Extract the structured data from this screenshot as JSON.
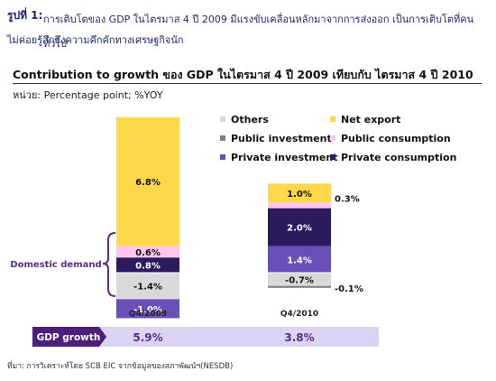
{
  "figure": {
    "label": "รูปที่ 1:",
    "caption_line1": "การเติบโตของ GDP ในไตรมาส 4 ปี 2009 มีแรงขับเคลื่อนหลักมาจากการส่งออก เป็นการเติบโตที่คนทั่วไป",
    "caption_line2": "ไม่ค่อยรู้สึกถึงความคึกคักทางเศรษฐกิจนัก",
    "footnote": "ที่มา: การวิเคราะห์โดย SCB EIC จากข้อมูลของสภาพัฒน์ฯ(NESDB)"
  },
  "chart_data": {
    "type": "bar",
    "stacked": true,
    "title": "Contribution to growth ของ GDP ในไตรมาส 4 ปี 2009 เทียบกับ ไตรมาส 4 ปี 2010",
    "unit": "หน่วย: Percentage point; %YOY",
    "categories": [
      "Q4/2009",
      "Q4/2010"
    ],
    "series": [
      {
        "name": "Others",
        "color": "#d9d9d9",
        "values": [
          -1.4,
          -0.7
        ],
        "labels": [
          "-1.4%",
          "-0.7%"
        ]
      },
      {
        "name": "Public investment",
        "color": "#808080",
        "values": [
          0.0,
          -0.1
        ],
        "labels": [
          "",
          "-0.1%"
        ]
      },
      {
        "name": "Private investment",
        "color": "#6a4fb8",
        "values": [
          -1.0,
          1.4
        ],
        "labels": [
          "-1.0%",
          "1.4%"
        ]
      },
      {
        "name": "Private consumption",
        "color": "#2b1b5e",
        "values": [
          0.8,
          2.0
        ],
        "labels": [
          "0.8%",
          "2.0%"
        ]
      },
      {
        "name": "Public consumption",
        "color": "#ffc6ef",
        "values": [
          0.6,
          0.3
        ],
        "labels": [
          "0.6%",
          "0.3%"
        ]
      },
      {
        "name": "Net export",
        "color": "#ffd84a",
        "values": [
          6.8,
          1.0
        ],
        "labels": [
          "6.8%",
          "1.0%"
        ]
      }
    ],
    "annotation": "Domestic  demand",
    "gdp_growth": {
      "label": "GDP growth",
      "values": [
        "5.9%",
        "3.8%"
      ]
    },
    "legend_position": "top-right",
    "grid": false
  }
}
